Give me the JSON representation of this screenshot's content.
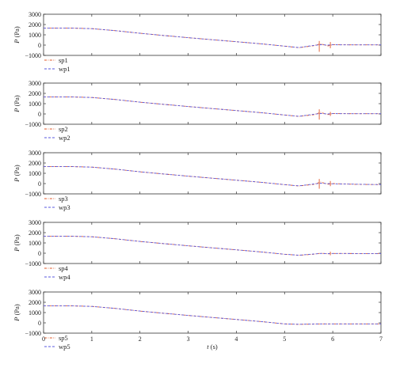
{
  "colors": {
    "sp": "#e2592a",
    "wp": "#5a5adf",
    "axis": "#333333"
  },
  "chart_data": {
    "type": "line",
    "xlabel_var": "t",
    "xlabel_unit": " (s)",
    "ylabel_var": "P",
    "ylabel_unit": " (Pa)",
    "xlim": [
      0,
      7
    ],
    "ylim": [
      -1000,
      3000
    ],
    "x_ticks": [
      "0",
      "1",
      "2",
      "3",
      "4",
      "5",
      "6",
      "7"
    ],
    "y_ticks": [
      "3000",
      "2000",
      "1000",
      "0",
      "−1000"
    ],
    "grid": false,
    "legend_position": "below-left",
    "panels": [
      {
        "series": [
          {
            "name": "sp1",
            "style": "dash-dot",
            "color": "#e2592a",
            "x": [
              0,
              0.5,
              1.0,
              1.5,
              2.0,
              2.5,
              3.0,
              3.5,
              4.0,
              4.5,
              5.0,
              5.3,
              5.6,
              5.75,
              5.9,
              6.0,
              6.5,
              7.0
            ],
            "y": [
              1650,
              1660,
              1600,
              1400,
              1150,
              930,
              720,
              520,
              330,
              130,
              -100,
              -250,
              -60,
              120,
              -80,
              40,
              20,
              20
            ]
          },
          {
            "name": "wp1",
            "style": "dashed",
            "color": "#5a5adf",
            "x": [
              0,
              0.5,
              1.0,
              1.5,
              2.0,
              2.5,
              3.0,
              3.5,
              4.0,
              4.5,
              5.0,
              5.3,
              5.6,
              5.75,
              5.9,
              6.0,
              6.5,
              7.0
            ],
            "y": [
              1650,
              1660,
              1600,
              1400,
              1150,
              930,
              720,
              520,
              330,
              130,
              -100,
              -240,
              -30,
              40,
              0,
              30,
              20,
              20
            ]
          }
        ],
        "spikes": [
          {
            "x": 5.72,
            "y_min": -650,
            "y_max": 400
          },
          {
            "x": 5.95,
            "y_min": -300,
            "y_max": 300
          }
        ]
      },
      {
        "series": [
          {
            "name": "sp2",
            "style": "dash-dot",
            "color": "#e2592a",
            "x": [
              0,
              0.5,
              1.0,
              1.5,
              2.0,
              2.5,
              3.0,
              3.5,
              4.0,
              4.5,
              5.0,
              5.3,
              5.6,
              5.75,
              5.9,
              6.0,
              6.5,
              7.0
            ],
            "y": [
              1650,
              1660,
              1600,
              1400,
              1150,
              930,
              720,
              520,
              330,
              130,
              -100,
              -240,
              -80,
              150,
              -60,
              40,
              20,
              20
            ]
          },
          {
            "name": "wp2",
            "style": "dashed",
            "color": "#5a5adf",
            "x": [
              0,
              0.5,
              1.0,
              1.5,
              2.0,
              2.5,
              3.0,
              3.5,
              4.0,
              4.5,
              5.0,
              5.3,
              5.6,
              5.75,
              5.9,
              6.0,
              6.5,
              7.0
            ],
            "y": [
              1650,
              1660,
              1600,
              1400,
              1150,
              930,
              720,
              520,
              330,
              130,
              -100,
              -230,
              -30,
              40,
              0,
              30,
              20,
              20
            ]
          }
        ],
        "spikes": [
          {
            "x": 5.72,
            "y_min": -550,
            "y_max": 450
          },
          {
            "x": 5.95,
            "y_min": -200,
            "y_max": 200
          }
        ]
      },
      {
        "series": [
          {
            "name": "sp3",
            "style": "dash-dot",
            "color": "#e2592a",
            "x": [
              0,
              0.5,
              1.0,
              1.5,
              2.0,
              2.5,
              3.0,
              3.5,
              4.0,
              4.5,
              5.0,
              5.3,
              5.6,
              5.75,
              5.9,
              6.0,
              6.5,
              7.0
            ],
            "y": [
              1650,
              1660,
              1600,
              1400,
              1150,
              930,
              720,
              520,
              330,
              130,
              -100,
              -230,
              -80,
              150,
              -60,
              0,
              -80,
              -100
            ]
          },
          {
            "name": "wp3",
            "style": "dashed",
            "color": "#5a5adf",
            "x": [
              0,
              0.5,
              1.0,
              1.5,
              2.0,
              2.5,
              3.0,
              3.5,
              4.0,
              4.5,
              5.0,
              5.3,
              5.6,
              5.75,
              5.9,
              6.0,
              6.5,
              7.0
            ],
            "y": [
              1650,
              1660,
              1600,
              1400,
              1150,
              930,
              720,
              520,
              330,
              130,
              -100,
              -220,
              -40,
              30,
              0,
              -20,
              -60,
              -100
            ]
          }
        ],
        "spikes": [
          {
            "x": 5.72,
            "y_min": -500,
            "y_max": 450
          },
          {
            "x": 5.95,
            "y_min": -250,
            "y_max": 250
          }
        ]
      },
      {
        "series": [
          {
            "name": "sp4",
            "style": "dash-dot",
            "color": "#e2592a",
            "x": [
              0,
              0.5,
              1.0,
              1.5,
              2.0,
              2.5,
              3.0,
              3.5,
              4.0,
              4.5,
              5.0,
              5.3,
              5.6,
              5.75,
              5.9,
              6.0,
              6.5,
              7.0
            ],
            "y": [
              1650,
              1660,
              1600,
              1400,
              1150,
              930,
              720,
              520,
              330,
              130,
              -100,
              -200,
              -100,
              0,
              -60,
              -20,
              -30,
              -30
            ]
          },
          {
            "name": "wp4",
            "style": "dashed",
            "color": "#5a5adf",
            "x": [
              0,
              0.5,
              1.0,
              1.5,
              2.0,
              2.5,
              3.0,
              3.5,
              4.0,
              4.5,
              5.0,
              5.3,
              5.6,
              5.75,
              5.9,
              6.0,
              6.5,
              7.0
            ],
            "y": [
              1650,
              1660,
              1600,
              1400,
              1150,
              930,
              720,
              520,
              330,
              130,
              -100,
              -190,
              -80,
              -20,
              -40,
              -20,
              -30,
              -30
            ]
          }
        ],
        "spikes": [
          {
            "x": 5.95,
            "y_min": -200,
            "y_max": 150
          }
        ]
      },
      {
        "series": [
          {
            "name": "sp5",
            "style": "dash-dot",
            "color": "#e2592a",
            "x": [
              0,
              0.5,
              1.0,
              1.5,
              2.0,
              2.5,
              3.0,
              3.5,
              4.0,
              4.5,
              5.0,
              5.3,
              5.6,
              5.75,
              5.9,
              6.0,
              6.5,
              7.0
            ],
            "y": [
              1650,
              1660,
              1600,
              1400,
              1150,
              930,
              720,
              520,
              330,
              130,
              -100,
              -150,
              -120,
              -100,
              -110,
              -100,
              -100,
              -100
            ]
          },
          {
            "name": "wp5",
            "style": "dashed",
            "color": "#5a5adf",
            "x": [
              0,
              0.5,
              1.0,
              1.5,
              2.0,
              2.5,
              3.0,
              3.5,
              4.0,
              4.5,
              5.0,
              5.3,
              5.6,
              5.75,
              5.9,
              6.0,
              6.5,
              7.0
            ],
            "y": [
              1650,
              1660,
              1600,
              1400,
              1150,
              930,
              720,
              520,
              330,
              130,
              -100,
              -140,
              -110,
              -100,
              -100,
              -100,
              -100,
              -100
            ]
          }
        ],
        "spikes": []
      }
    ]
  }
}
